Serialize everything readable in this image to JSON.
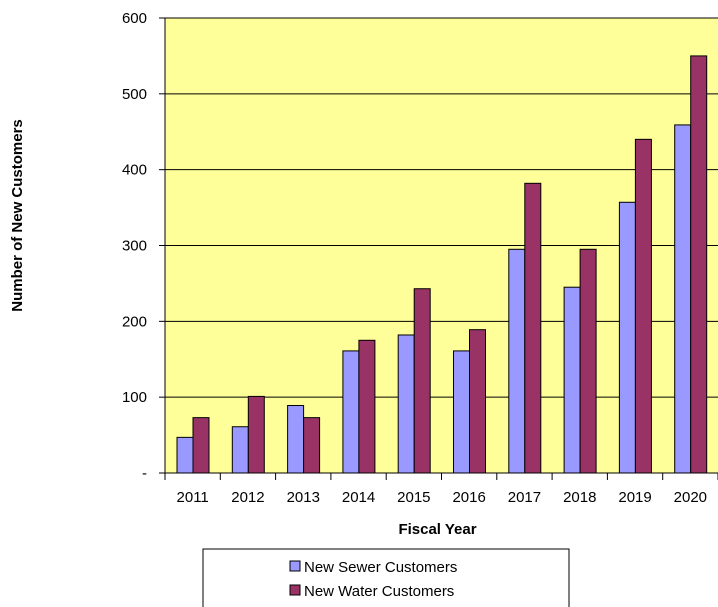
{
  "chart_data": {
    "type": "bar",
    "title": "",
    "xlabel": "Fiscal Year",
    "ylabel": "Number of New Customers",
    "categories": [
      "2011",
      "2012",
      "2013",
      "2014",
      "2015",
      "2016",
      "2017",
      "2018",
      "2019",
      "2020"
    ],
    "series": [
      {
        "name": "New Sewer Customers",
        "color": "#9999ff",
        "values": [
          47,
          61,
          89,
          161,
          182,
          161,
          295,
          245,
          357,
          459
        ]
      },
      {
        "name": "New Water Customers",
        "color": "#993366",
        "values": [
          73,
          101,
          73,
          175,
          243,
          189,
          382,
          295,
          440,
          550
        ]
      }
    ],
    "ylim": [
      0,
      600
    ],
    "yticks": [
      0,
      100,
      200,
      300,
      400,
      500,
      600
    ],
    "ytick_labels": [
      "-",
      "100",
      "200",
      "300",
      "400",
      "500",
      "600"
    ],
    "plot_background": "#ffff99",
    "grid": true,
    "legend_position": "bottom"
  }
}
